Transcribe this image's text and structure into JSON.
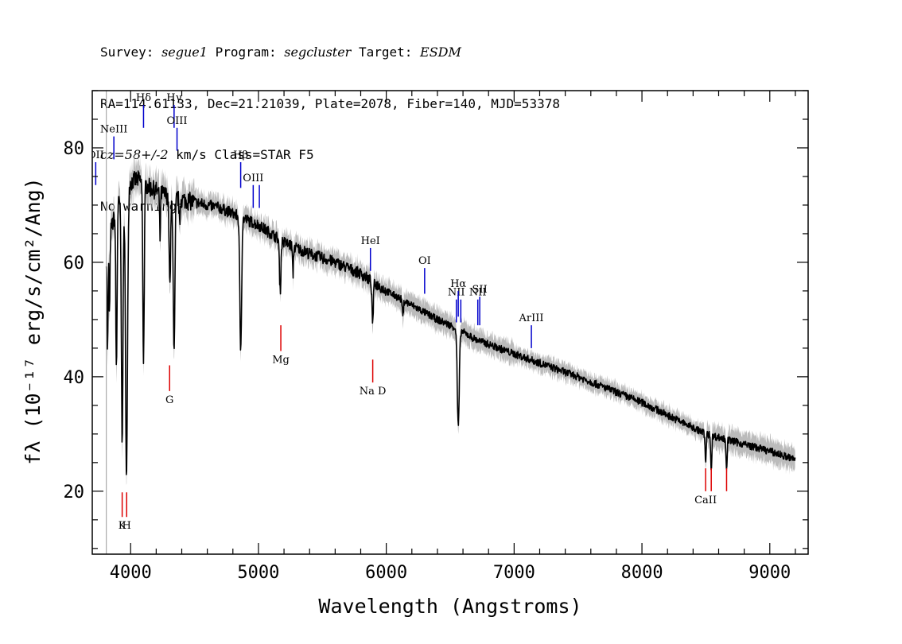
{
  "header": {
    "line1": {
      "survey_label": "Survey: ",
      "survey": "segue1",
      "program_label": " Program: ",
      "program": "segcluster",
      "target_label": " Target: ",
      "target": "ESDM"
    },
    "line2": "RA=114.61133, Dec=21.21039, Plate=2078, Fiber=140, MJD=53378",
    "line3": {
      "cz": "cz=58+/-2",
      "rest": " km/s Class=STAR F5"
    },
    "line4": "No warnings."
  },
  "chart_data": {
    "type": "line",
    "xlabel": "Wavelength (Angstroms)",
    "ylabel": "fλ (10⁻¹⁷ erg/s/cm²/Ang)",
    "xlim": [
      3700,
      9300
    ],
    "ylim": [
      9,
      90
    ],
    "x_ticks": [
      4000,
      5000,
      6000,
      7000,
      8000,
      9000
    ],
    "y_ticks": [
      20,
      40,
      60,
      80
    ],
    "colors": {
      "spectrum": "#000000",
      "error": "#bbbbbb",
      "emission": "#0000cc",
      "absorption": "#dd0000"
    },
    "continuum": [
      [
        3810,
        62
      ],
      [
        3850,
        66
      ],
      [
        3900,
        70
      ],
      [
        3950,
        72
      ],
      [
        4000,
        74
      ],
      [
        4050,
        74.5
      ],
      [
        4100,
        74
      ],
      [
        4150,
        73
      ],
      [
        4200,
        72.5
      ],
      [
        4300,
        71.5
      ],
      [
        4400,
        71
      ],
      [
        4500,
        70.5
      ],
      [
        4600,
        70
      ],
      [
        4700,
        69.5
      ],
      [
        4800,
        68.5
      ],
      [
        4900,
        67.5
      ],
      [
        5000,
        66.5
      ],
      [
        5100,
        65
      ],
      [
        5200,
        63.5
      ],
      [
        5400,
        61.5
      ],
      [
        5600,
        60
      ],
      [
        5800,
        58
      ],
      [
        6000,
        55
      ],
      [
        6200,
        52.5
      ],
      [
        6400,
        50
      ],
      [
        6550,
        48.5
      ],
      [
        6700,
        46.5
      ],
      [
        7000,
        44
      ],
      [
        7500,
        40
      ],
      [
        8000,
        35.5
      ],
      [
        8500,
        30
      ],
      [
        9000,
        27
      ],
      [
        9200,
        25.5
      ]
    ],
    "absorption_features": [
      {
        "x": 3820,
        "depth": 18,
        "width": 6
      },
      {
        "x": 3835,
        "depth": 14,
        "width": 5
      },
      {
        "x": 3889,
        "depth": 28,
        "width": 7
      },
      {
        "x": 3934,
        "depth": 42,
        "width": 9
      },
      {
        "x": 3968,
        "depth": 50,
        "width": 11
      },
      {
        "x": 4101,
        "depth": 31,
        "width": 8
      },
      {
        "x": 4230,
        "depth": 8,
        "width": 5
      },
      {
        "x": 4307,
        "depth": 16,
        "width": 8
      },
      {
        "x": 4340,
        "depth": 28,
        "width": 9
      },
      {
        "x": 4383,
        "depth": 5,
        "width": 5
      },
      {
        "x": 4861,
        "depth": 23,
        "width": 10
      },
      {
        "x": 5170,
        "depth": 9,
        "width": 8
      },
      {
        "x": 5270,
        "depth": 5,
        "width": 5
      },
      {
        "x": 5893,
        "depth": 7,
        "width": 8
      },
      {
        "x": 6130,
        "depth": 3,
        "width": 6
      },
      {
        "x": 6563,
        "depth": 17,
        "width": 11
      },
      {
        "x": 8498,
        "depth": 5,
        "width": 6
      },
      {
        "x": 8542,
        "depth": 6,
        "width": 6
      },
      {
        "x": 8662,
        "depth": 5,
        "width": 6
      }
    ],
    "emission_lines": [
      {
        "label": "OII",
        "x": 3727,
        "y_top": 77.5,
        "y_bottom": 73.5
      },
      {
        "label": "NeIII",
        "x": 3869,
        "y_top": 82,
        "y_bottom": 78
      },
      {
        "label": "Hδ",
        "x": 4101,
        "y_top": 87.5,
        "y_bottom": 83.5
      },
      {
        "label": "Hγ",
        "x": 4340,
        "y_top": 87.5,
        "y_bottom": 83.5
      },
      {
        "label": "OIII",
        "x": 4363,
        "y_top": 83.5,
        "y_bottom": 79.5
      },
      {
        "label": "Hβ",
        "x": 4861,
        "y_top": 77.5,
        "y_bottom": 73
      },
      {
        "label": "OIII",
        "x": 4959,
        "y_top": 73.5,
        "y_bottom": 69.5
      },
      {
        "label": "",
        "x": 5007,
        "y_top": 73.5,
        "y_bottom": 69.5
      },
      {
        "label": "HeI",
        "x": 5876,
        "y_top": 62.5,
        "y_bottom": 58.5
      },
      {
        "label": "OI",
        "x": 6300,
        "y_top": 59,
        "y_bottom": 54.5
      },
      {
        "label": "NII",
        "x": 6548,
        "y_top": 53.5,
        "y_bottom": 49.5
      },
      {
        "label": "Hα",
        "x": 6563,
        "y_top": 55,
        "y_bottom": 50.5
      },
      {
        "label": "",
        "x": 6583,
        "y_top": 53.5,
        "y_bottom": 49.5
      },
      {
        "label": "NII",
        "x": 6716,
        "y_top": 53.5,
        "y_bottom": 49
      },
      {
        "label": "SII",
        "x": 6731,
        "y_top": 54,
        "y_bottom": 49
      },
      {
        "label": "ArIII",
        "x": 7135,
        "y_top": 49,
        "y_bottom": 45
      }
    ],
    "absorption_lines": [
      {
        "label": "K",
        "x": 3934,
        "y_top": 19.8,
        "y_bottom": 15.5
      },
      {
        "label": "H",
        "x": 3969,
        "y_top": 19.8,
        "y_bottom": 15.5
      },
      {
        "label": "G",
        "x": 4305,
        "y_top": 42,
        "y_bottom": 37.5
      },
      {
        "label": "Mg",
        "x": 5175,
        "y_top": 49,
        "y_bottom": 44.5
      },
      {
        "label": "Na D",
        "x": 5894,
        "y_top": 43,
        "y_bottom": 39
      },
      {
        "label": "CaII",
        "x": 8498,
        "y_top": 24,
        "y_bottom": 20
      },
      {
        "label": "",
        "x": 8542,
        "y_top": 24,
        "y_bottom": 20
      },
      {
        "label": "",
        "x": 8662,
        "y_top": 24,
        "y_bottom": 20
      }
    ]
  }
}
